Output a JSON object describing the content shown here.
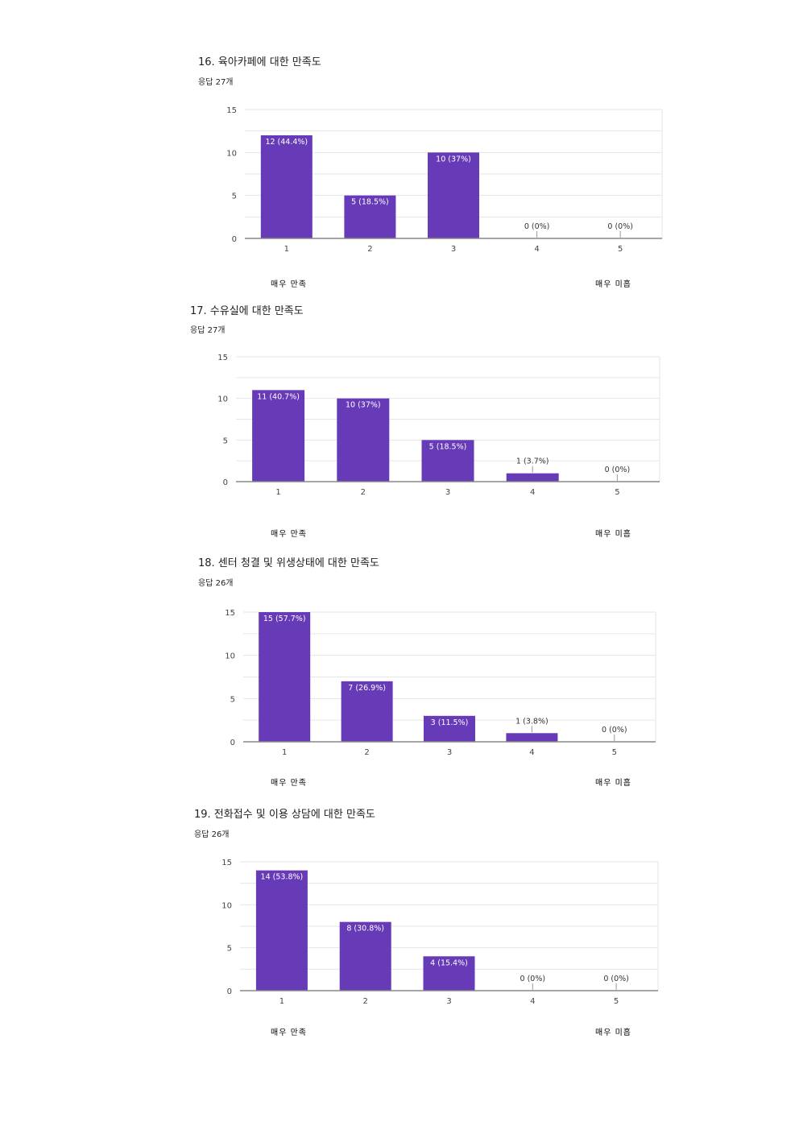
{
  "colors": {
    "bar": "#673ab7",
    "grid": "#e6e6e6",
    "axis": "#888888",
    "label": "#444444"
  },
  "charts": [
    {
      "title": "16. 육아카페에 대한 만족도",
      "responses": "응답 27개",
      "left_label": "매우 만족",
      "right_label": "매우 미흡"
    },
    {
      "title": "17. 수유실에 대한 만족도",
      "responses": "응답 27개",
      "left_label": "매우 만족",
      "right_label": "매우 미흡"
    },
    {
      "title": "18. 센터 청결 및 위생상태에 대한 만족도",
      "responses": "응답 26개",
      "left_label": "매우 만족",
      "right_label": "매우 미흡"
    },
    {
      "title": "19. 전화접수 및 이용 상담에 대한 만족도",
      "responses": "응답 26개",
      "left_label": "매우 만족",
      "right_label": "매우 미흡"
    }
  ],
  "chart_data": [
    {
      "type": "bar",
      "title": "16. 육아카페에 대한 만족도",
      "categories": [
        "1",
        "2",
        "3",
        "4",
        "5"
      ],
      "values": [
        12,
        5,
        10,
        0,
        0
      ],
      "data_labels": [
        "12 (44.4%)",
        "5 (18.5%)",
        "10 (37%)",
        "0 (0%)",
        "0 (0%)"
      ],
      "yticks": [
        "0",
        "5",
        "10",
        "15"
      ],
      "ylim": [
        0,
        15
      ],
      "grid": true
    },
    {
      "type": "bar",
      "title": "17. 수유실에 대한 만족도",
      "categories": [
        "1",
        "2",
        "3",
        "4",
        "5"
      ],
      "values": [
        11,
        10,
        5,
        1,
        0
      ],
      "data_labels": [
        "11 (40.7%)",
        "10 (37%)",
        "5 (18.5%)",
        "1 (3.7%)",
        "0 (0%)"
      ],
      "yticks": [
        "0",
        "5",
        "10",
        "15"
      ],
      "ylim": [
        0,
        15
      ],
      "grid": true
    },
    {
      "type": "bar",
      "title": "18. 센터 청결 및 위생상태에 대한 만족도",
      "categories": [
        "1",
        "2",
        "3",
        "4",
        "5"
      ],
      "values": [
        15,
        7,
        3,
        1,
        0
      ],
      "data_labels": [
        "15 (57.7%)",
        "7 (26.9%)",
        "3 (11.5%)",
        "1 (3.8%)",
        "0 (0%)"
      ],
      "yticks": [
        "0",
        "5",
        "10",
        "15"
      ],
      "ylim": [
        0,
        15
      ],
      "grid": true
    },
    {
      "type": "bar",
      "title": "19. 전화접수 및 이용 상담에 대한 만족도",
      "categories": [
        "1",
        "2",
        "3",
        "4",
        "5"
      ],
      "values": [
        14,
        8,
        4,
        0,
        0
      ],
      "data_labels": [
        "14 (53.8%)",
        "8 (30.8%)",
        "4 (15.4%)",
        "0 (0%)",
        "0 (0%)"
      ],
      "yticks": [
        "0",
        "5",
        "10",
        "15"
      ],
      "ylim": [
        0,
        15
      ],
      "grid": true
    }
  ]
}
